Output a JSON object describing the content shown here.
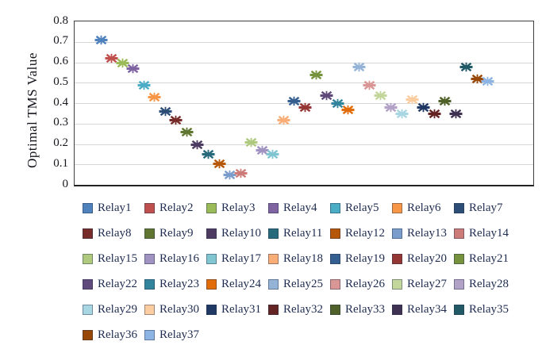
{
  "chart_data": {
    "type": "scatter",
    "title": "",
    "xlabel": "",
    "ylabel": "Optimal TMS Value",
    "ylim": [
      0,
      0.8
    ],
    "ytick_labels": [
      "0.8",
      "0.7",
      "0.6",
      "0.5",
      "0.4",
      "0.3",
      "0.2",
      "0.1",
      "0"
    ],
    "grid": "horizontal",
    "marker_style": "star-x",
    "legend_position": "bottom",
    "legend_columns": 7,
    "series": [
      {
        "name": "Relay1",
        "color": "#4F81BD",
        "value": 0.71
      },
      {
        "name": "Relay2",
        "color": "#C0504D",
        "value": 0.62
      },
      {
        "name": "Relay3",
        "color": "#9BBB59",
        "value": 0.6
      },
      {
        "name": "Relay4",
        "color": "#8064A2",
        "value": 0.57
      },
      {
        "name": "Relay5",
        "color": "#4BACC6",
        "value": 0.49
      },
      {
        "name": "Relay6",
        "color": "#F79646",
        "value": 0.43
      },
      {
        "name": "Relay7",
        "color": "#2C4D75",
        "value": 0.36
      },
      {
        "name": "Relay8",
        "color": "#772C2A",
        "value": 0.32
      },
      {
        "name": "Relay9",
        "color": "#5F7530",
        "value": 0.26
      },
      {
        "name": "Relay10",
        "color": "#4D3B62",
        "value": 0.2
      },
      {
        "name": "Relay11",
        "color": "#276A7C",
        "value": 0.15
      },
      {
        "name": "Relay12",
        "color": "#B65708",
        "value": 0.105
      },
      {
        "name": "Relay13",
        "color": "#7B9DCB",
        "value": 0.05
      },
      {
        "name": "Relay14",
        "color": "#CC7B79",
        "value": 0.06
      },
      {
        "name": "Relay15",
        "color": "#AFC97E",
        "value": 0.21
      },
      {
        "name": "Relay16",
        "color": "#A193C1",
        "value": 0.17
      },
      {
        "name": "Relay17",
        "color": "#81C5D1",
        "value": 0.15
      },
      {
        "name": "Relay18",
        "color": "#F9AE77",
        "value": 0.32
      },
      {
        "name": "Relay19",
        "color": "#365F91",
        "value": 0.41
      },
      {
        "name": "Relay20",
        "color": "#943634",
        "value": 0.38
      },
      {
        "name": "Relay21",
        "color": "#76923C",
        "value": 0.54
      },
      {
        "name": "Relay22",
        "color": "#5F497A",
        "value": 0.44
      },
      {
        "name": "Relay23",
        "color": "#31849B",
        "value": 0.4
      },
      {
        "name": "Relay24",
        "color": "#E36C0A",
        "value": 0.37
      },
      {
        "name": "Relay25",
        "color": "#95B3D7",
        "value": 0.58
      },
      {
        "name": "Relay26",
        "color": "#D99694",
        "value": 0.49
      },
      {
        "name": "Relay27",
        "color": "#C3D69B",
        "value": 0.44
      },
      {
        "name": "Relay28",
        "color": "#B3A2C7",
        "value": 0.38
      },
      {
        "name": "Relay29",
        "color": "#A9D6E3",
        "value": 0.35
      },
      {
        "name": "Relay30",
        "color": "#FBCDA0",
        "value": 0.42
      },
      {
        "name": "Relay31",
        "color": "#1F3864",
        "value": 0.38
      },
      {
        "name": "Relay32",
        "color": "#632423",
        "value": 0.35
      },
      {
        "name": "Relay33",
        "color": "#4F6128",
        "value": 0.41
      },
      {
        "name": "Relay34",
        "color": "#3F3151",
        "value": 0.35
      },
      {
        "name": "Relay35",
        "color": "#215967",
        "value": 0.58
      },
      {
        "name": "Relay36",
        "color": "#974807",
        "value": 0.52
      },
      {
        "name": "Relay37",
        "color": "#8DB4E2",
        "value": 0.51
      }
    ]
  }
}
